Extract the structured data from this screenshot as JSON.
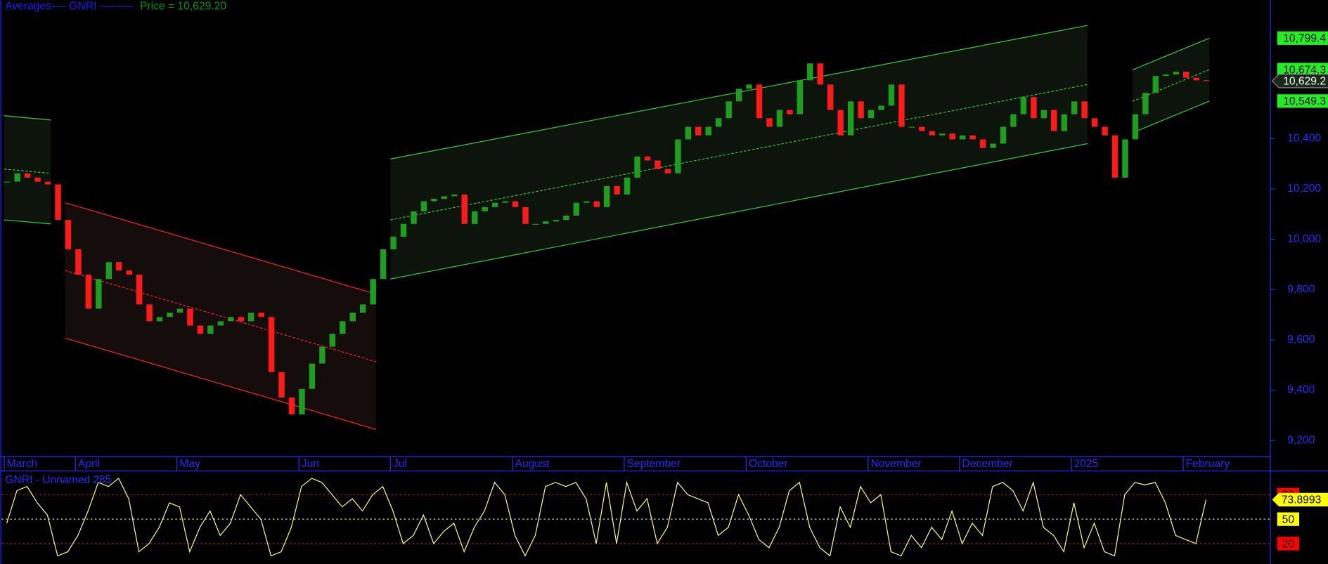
{
  "chart_data": [
    {
      "type": "candlestick",
      "title_parts": [
        {
          "text": "Averages---- GNRI ---------",
          "color": "#1c1cff"
        },
        {
          "text": "Price = 10,629.20",
          "color": "#009900"
        }
      ],
      "categories": [
        "March",
        null,
        null,
        null,
        null,
        null,
        null,
        "April",
        null,
        null,
        null,
        null,
        null,
        null,
        null,
        null,
        null,
        "May",
        null,
        null,
        null,
        null,
        null,
        null,
        null,
        null,
        null,
        null,
        null,
        "Jun",
        null,
        null,
        null,
        null,
        null,
        null,
        null,
        null,
        "Jul",
        null,
        null,
        null,
        null,
        null,
        null,
        null,
        null,
        null,
        null,
        null,
        "August",
        null,
        null,
        null,
        null,
        null,
        null,
        null,
        null,
        null,
        null,
        "September",
        null,
        null,
        null,
        null,
        null,
        null,
        null,
        null,
        null,
        null,
        null,
        "October",
        null,
        null,
        null,
        null,
        null,
        null,
        null,
        null,
        null,
        null,
        null,
        "November",
        null,
        null,
        null,
        null,
        null,
        null,
        null,
        null,
        "December",
        null,
        null,
        null,
        null,
        null,
        null,
        null,
        null,
        null,
        null,
        "2025",
        null,
        null,
        null,
        null,
        null,
        null,
        null,
        null,
        null,
        null,
        "February",
        null,
        null
      ],
      "values": [
        10229,
        10262,
        10245,
        10229,
        10218,
        10077,
        9960,
        9859,
        9724,
        9842,
        9909,
        9876,
        9859,
        9741,
        9674,
        9691,
        9708,
        9724,
        9657,
        9624,
        9657,
        9674,
        9691,
        9674,
        9708,
        9691,
        9472,
        9371,
        9304,
        9405,
        9506,
        9573,
        9624,
        9674,
        9708,
        9741,
        9842,
        9960,
        10010,
        10061,
        10111,
        10151,
        10161,
        10171,
        10178,
        10061,
        10111,
        10128,
        10145,
        10151,
        10128,
        10061,
        10061,
        10071,
        10077,
        10094,
        10145,
        10151,
        10128,
        10212,
        10178,
        10245,
        10329,
        10313,
        10279,
        10262,
        10397,
        10447,
        10413,
        10447,
        10481,
        10548,
        10598,
        10615,
        10481,
        10447,
        10514,
        10497,
        10632,
        10699,
        10615,
        10514,
        10413,
        10548,
        10481,
        10514,
        10531,
        10615,
        10447,
        10447,
        10430,
        10413,
        10420,
        10397,
        10413,
        10397,
        10363,
        10380,
        10447,
        10497,
        10565,
        10481,
        10514,
        10430,
        10497,
        10548,
        10481,
        10447,
        10413,
        10245,
        10397,
        10497,
        10582,
        10649,
        10655,
        10666,
        10642,
        10632,
        10629.2
      ],
      "value_labels_last": "10,629.2",
      "up_color": "#1e9e1e",
      "down_color": "#ff1a1a",
      "ylim": [
        9136,
        10951
      ],
      "yticks": [
        {
          "value": 9200,
          "label": "9,200"
        },
        {
          "value": 9400,
          "label": "9,400"
        },
        {
          "value": 9600,
          "label": "9,600"
        },
        {
          "value": 9800,
          "label": "9,800"
        },
        {
          "value": 10000,
          "label": "10,000"
        },
        {
          "value": 10200,
          "label": "10,200"
        },
        {
          "value": 10400,
          "label": "10,400"
        }
      ],
      "channels": [
        {
          "color": "#33cc33",
          "fill": "#0c140c",
          "x": [
            0,
            4
          ],
          "upper": [
            10491,
            10474
          ],
          "middle": [
            10279,
            10262
          ],
          "lower": [
            10077,
            10061
          ]
        },
        {
          "color": "#ff2222",
          "fill": "#150c0c",
          "x": [
            6,
            36
          ],
          "upper": [
            10145,
            9782
          ],
          "middle": [
            9876,
            9513
          ],
          "lower": [
            9607,
            9244
          ]
        },
        {
          "color": "#33cc33",
          "fill": "#0c140c",
          "x": [
            38,
            106
          ],
          "upper": [
            10319,
            10850
          ],
          "middle": [
            10077,
            10615
          ],
          "lower": [
            9842,
            10380
          ]
        },
        {
          "color": "#33cc33",
          "fill": "#0c140c",
          "x": [
            111,
            118
          ],
          "upper": [
            10673,
            10799.4
          ],
          "middle": [
            10548,
            10674.3
          ],
          "lower": [
            10423,
            10549.3
          ],
          "value_labels": {
            "upper": "10,799.4",
            "middle": "10,674.3",
            "lower": "10,549.3"
          }
        }
      ]
    },
    {
      "type": "line",
      "title": "GNRI - Unnamed 285",
      "color": "#ffff66",
      "values": [
        45,
        85,
        90,
        70,
        55,
        5,
        10,
        30,
        60,
        95,
        90,
        100,
        75,
        10,
        20,
        40,
        70,
        65,
        10,
        40,
        60,
        30,
        45,
        80,
        65,
        50,
        5,
        10,
        40,
        90,
        100,
        95,
        80,
        65,
        75,
        60,
        80,
        90,
        60,
        20,
        30,
        55,
        20,
        35,
        45,
        10,
        40,
        60,
        95,
        80,
        30,
        5,
        30,
        90,
        95,
        90,
        95,
        75,
        20,
        95,
        20,
        95,
        60,
        75,
        20,
        40,
        95,
        80,
        75,
        70,
        30,
        40,
        80,
        55,
        25,
        15,
        40,
        85,
        95,
        40,
        15,
        5,
        65,
        40,
        90,
        70,
        80,
        10,
        5,
        30,
        15,
        40,
        25,
        60,
        20,
        45,
        30,
        90,
        95,
        85,
        60,
        95,
        40,
        30,
        10,
        70,
        15,
        45,
        10,
        5,
        80,
        95,
        92,
        95,
        70,
        30,
        25,
        20,
        73.8993
      ],
      "ylim": [
        -5,
        108
      ],
      "levels": [
        {
          "value": 80,
          "color": "#ff0000"
        },
        {
          "value": 50,
          "color": "#ffff00"
        },
        {
          "value": 20,
          "color": "#ff0000"
        }
      ]
    }
  ]
}
